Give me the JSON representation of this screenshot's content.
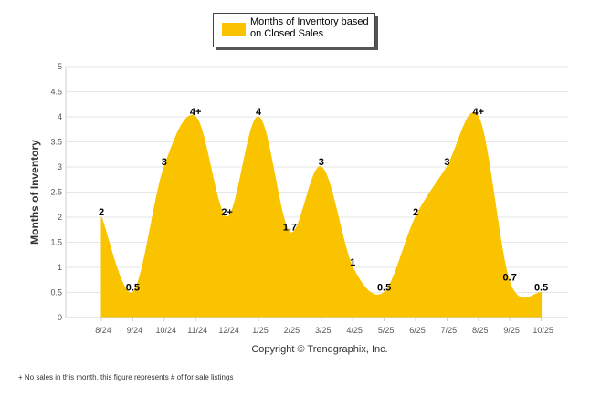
{
  "chart_data": {
    "type": "area",
    "title": "",
    "legend": "Months of Inventory based on Closed Sales",
    "ylabel": "Months of Inventory",
    "xlabel": "",
    "ylim": [
      0,
      5
    ],
    "yticks": [
      "0",
      "0.5",
      "1",
      "1.5",
      "2",
      "2.5",
      "3",
      "3.5",
      "4",
      "4.5",
      "5"
    ],
    "categories": [
      "8/24",
      "9/24",
      "10/24",
      "11/24",
      "12/24",
      "1/25",
      "2/25",
      "3/25",
      "4/25",
      "5/25",
      "6/25",
      "7/25",
      "8/25",
      "9/25",
      "10/25"
    ],
    "values": [
      2,
      0.5,
      3,
      4,
      2,
      4,
      1.7,
      3,
      1,
      0.5,
      2,
      3,
      4,
      0.7,
      0.5
    ],
    "labels": [
      "2",
      "0.5",
      "3",
      "4+",
      "2+",
      "4",
      "1.7",
      "3",
      "1",
      "0.5",
      "2",
      "3",
      "4+",
      "0.7",
      "0.5"
    ],
    "color": "#FAC300"
  },
  "copyright": "Copyright © Trendgraphix, Inc.",
  "footnote": "+  No sales in this month, this figure represents # of for sale listings"
}
